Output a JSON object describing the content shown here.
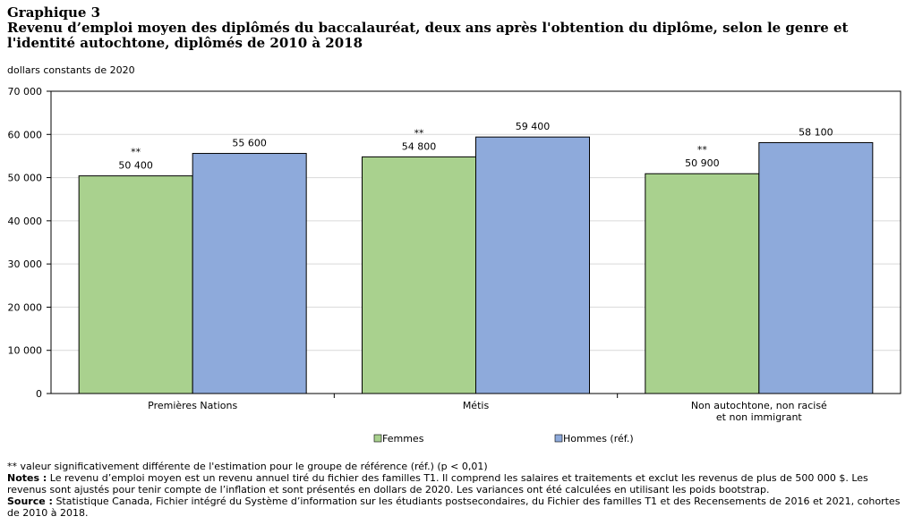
{
  "header": {
    "figure_label": "Graphique 3",
    "title": "Revenu d’emploi moyen des diplômés du baccalauréat, deux ans après l'obtention du diplôme, selon le genre et l'identité autochtone, diplômés de 2010 à 2018"
  },
  "unit_label": "dollars constants de 2020",
  "chart_data": {
    "type": "bar",
    "categories": [
      [
        "Premières Nations"
      ],
      [
        "Métis"
      ],
      [
        "Non autochtone, non racisé",
        "et non immigrant"
      ]
    ],
    "series": [
      {
        "name": "Femmes",
        "values": [
          50400,
          54800,
          50900
        ],
        "labels": [
          "50 400",
          "54 800",
          "50 900"
        ],
        "markers": [
          "**",
          "**",
          "**"
        ],
        "color": "#a9d18e"
      },
      {
        "name": "Hommes (réf.)",
        "values": [
          55600,
          59400,
          58100
        ],
        "labels": [
          "55 600",
          "59 400",
          "58 100"
        ],
        "markers": [
          "",
          "",
          ""
        ],
        "color": "#8eaadb"
      }
    ],
    "ylim": [
      0,
      70000
    ],
    "yticks": [
      0,
      10000,
      20000,
      30000,
      40000,
      50000,
      60000,
      70000
    ],
    "ytick_labels": [
      "0",
      "10 000",
      "20 000",
      "30 000",
      "40 000",
      "50 000",
      "60 000",
      "70 000"
    ],
    "grid": true,
    "legend_position": "bottom"
  },
  "footnotes": {
    "significance": "** valeur significativement différente de l'estimation pour le groupe de référence (réf.) (p < 0,01)",
    "notes_label": "Notes :",
    "notes_text": " Le revenu d’emploi moyen est un revenu annuel tiré du fichier des familles T1. Il comprend les salaires et traitements et exclut les revenus de plus de 500 000 $. Les revenus sont ajustés pour tenir compte de l’inflation et sont présentés en dollars de 2020. Les variances ont été calculées en utilisant les poids bootstrap.",
    "source_label": "Source :",
    "source_text": " Statistique Canada, Fichier intégré du Système d’information sur les étudiants postsecondaires, du Fichier des familles T1 et des Recensements de 2016 et 2021, cohortes de 2010 à 2018."
  }
}
